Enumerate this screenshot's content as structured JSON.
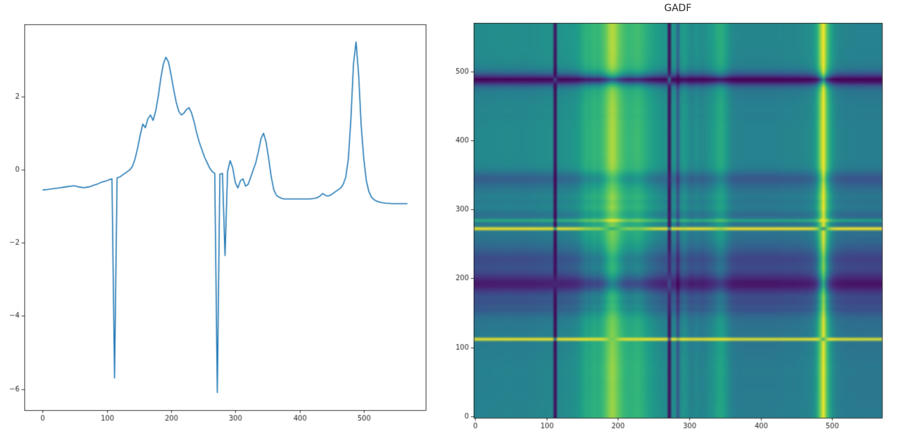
{
  "page": {
    "background": "#ffffff"
  },
  "figure": {
    "line_color": "#1f77b4",
    "spine_color": "#000000",
    "tick_label_color": "#262626",
    "title_color": "#262626",
    "tick_font_size": 10,
    "title_font_size": 14
  },
  "chart_data": [
    {
      "type": "line",
      "title": "",
      "xlabel": "",
      "ylabel": "",
      "xlim": [
        -28.4,
        596.4
      ],
      "ylim": [
        -6.58,
        3.98
      ],
      "xticks": [
        0,
        100,
        200,
        300,
        400,
        500
      ],
      "yticks": [
        -6,
        -4,
        -2,
        0,
        2
      ],
      "grid": false,
      "line_color": "#1f77b4",
      "x": [
        0,
        4,
        8,
        12,
        16,
        20,
        24,
        28,
        32,
        36,
        40,
        44,
        48,
        52,
        56,
        60,
        64,
        68,
        72,
        76,
        80,
        84,
        88,
        92,
        96,
        100,
        104,
        108,
        112,
        116,
        120,
        124,
        128,
        132,
        136,
        140,
        144,
        148,
        152,
        156,
        160,
        164,
        168,
        172,
        176,
        180,
        184,
        188,
        192,
        196,
        200,
        204,
        208,
        212,
        216,
        220,
        224,
        228,
        232,
        236,
        240,
        244,
        248,
        252,
        256,
        260,
        264,
        268,
        272,
        276,
        280,
        284,
        288,
        292,
        296,
        300,
        304,
        308,
        312,
        316,
        320,
        324,
        328,
        332,
        336,
        340,
        344,
        348,
        352,
        356,
        360,
        364,
        368,
        372,
        376,
        380,
        384,
        388,
        392,
        396,
        400,
        404,
        408,
        412,
        416,
        420,
        424,
        428,
        432,
        436,
        440,
        444,
        448,
        452,
        456,
        460,
        464,
        468,
        472,
        476,
        480,
        484,
        488,
        492,
        496,
        500,
        504,
        508,
        512,
        516,
        520,
        524,
        528,
        532,
        536,
        540,
        544,
        548,
        552,
        556,
        560,
        564,
        568
      ],
      "y": [
        -0.55,
        -0.55,
        -0.54,
        -0.53,
        -0.52,
        -0.51,
        -0.5,
        -0.49,
        -0.48,
        -0.47,
        -0.46,
        -0.45,
        -0.44,
        -0.45,
        -0.47,
        -0.48,
        -0.49,
        -0.48,
        -0.47,
        -0.45,
        -0.42,
        -0.4,
        -0.37,
        -0.34,
        -0.32,
        -0.3,
        -0.27,
        -0.25,
        -5.7,
        -0.22,
        -0.2,
        -0.15,
        -0.1,
        -0.05,
        0.0,
        0.1,
        0.3,
        0.6,
        0.95,
        1.25,
        1.15,
        1.4,
        1.5,
        1.35,
        1.6,
        2.0,
        2.5,
        2.9,
        3.08,
        2.95,
        2.6,
        2.2,
        1.85,
        1.6,
        1.5,
        1.55,
        1.65,
        1.7,
        1.55,
        1.3,
        1.0,
        0.75,
        0.55,
        0.35,
        0.2,
        0.05,
        -0.05,
        -0.1,
        -6.1,
        -0.12,
        -0.1,
        -2.35,
        -0.05,
        0.25,
        0.05,
        -0.35,
        -0.5,
        -0.3,
        -0.25,
        -0.45,
        -0.4,
        -0.2,
        0.0,
        0.2,
        0.5,
        0.85,
        1.0,
        0.75,
        0.3,
        -0.2,
        -0.55,
        -0.7,
        -0.75,
        -0.78,
        -0.8,
        -0.8,
        -0.8,
        -0.8,
        -0.8,
        -0.8,
        -0.8,
        -0.8,
        -0.8,
        -0.8,
        -0.8,
        -0.79,
        -0.78,
        -0.76,
        -0.72,
        -0.65,
        -0.7,
        -0.72,
        -0.7,
        -0.65,
        -0.6,
        -0.55,
        -0.5,
        -0.4,
        -0.2,
        0.3,
        1.4,
        2.9,
        3.5,
        2.6,
        1.2,
        0.3,
        -0.3,
        -0.6,
        -0.75,
        -0.82,
        -0.86,
        -0.88,
        -0.9,
        -0.91,
        -0.92,
        -0.92,
        -0.93,
        -0.93,
        -0.93,
        -0.93,
        -0.93,
        -0.93,
        -0.93
      ]
    },
    {
      "type": "heatmap",
      "title": "GADF",
      "xlabel": "",
      "ylabel": "",
      "xticks": [
        0,
        100,
        200,
        300,
        400,
        500
      ],
      "yticks": [
        0,
        100,
        200,
        300,
        400,
        500
      ],
      "colormap": "viridis",
      "value_range": [
        -1,
        1
      ],
      "transform": "Gramian Angular Difference Field of the series at left: GADF[i,j] = sin(phi_i - phi_j), phi = arccos(series min-max rescaled to [-1,1]), origin lower",
      "viridis_stops": [
        [
          68,
          1,
          84
        ],
        [
          72,
          40,
          120
        ],
        [
          62,
          74,
          137
        ],
        [
          49,
          104,
          142
        ],
        [
          38,
          130,
          142
        ],
        [
          31,
          158,
          137
        ],
        [
          53,
          183,
          121
        ],
        [
          109,
          205,
          89
        ],
        [
          253,
          231,
          37
        ]
      ]
    }
  ]
}
